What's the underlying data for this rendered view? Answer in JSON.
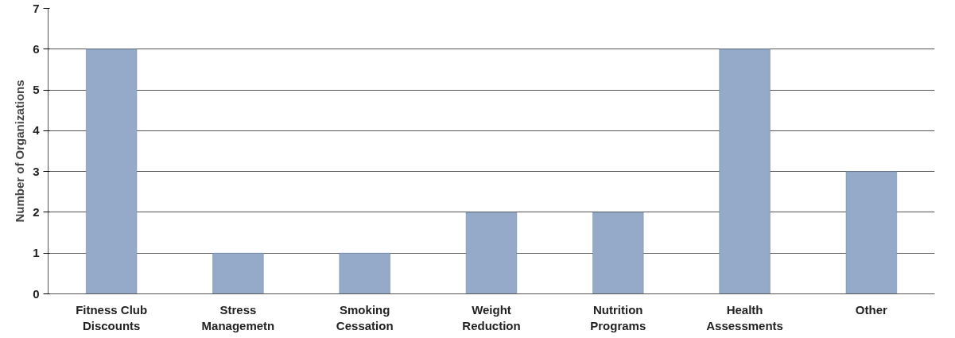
{
  "chart_data": {
    "type": "bar",
    "ylabel": "Number of Organizations",
    "categories": [
      "Fitness Club Discounts",
      "Stress Managemetn",
      "Smoking Cessation",
      "Weight Reduction",
      "Nutrition Programs",
      "Health Assessments",
      "Other"
    ],
    "values": [
      6,
      1,
      1,
      2,
      2,
      6,
      3
    ],
    "color": "#94aac8",
    "ylim": [
      0,
      7
    ],
    "yticks": [
      0,
      1,
      2,
      3,
      4,
      5,
      6,
      7
    ],
    "grid": "y"
  }
}
